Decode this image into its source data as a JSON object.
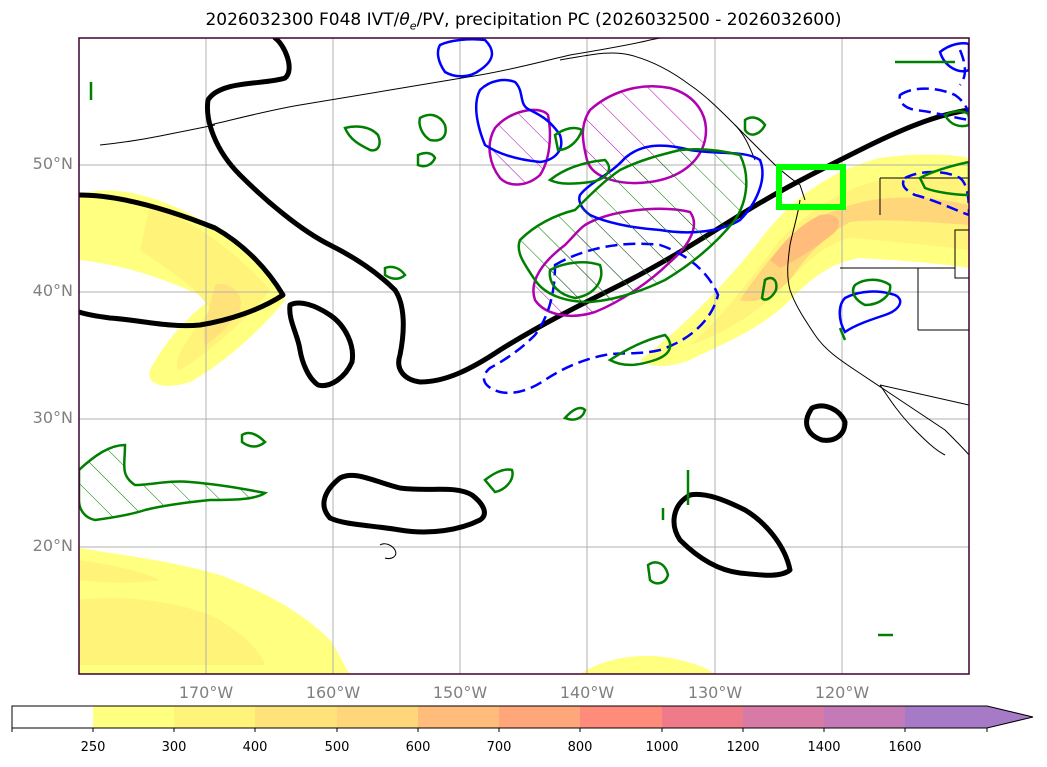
{
  "title": {
    "prefix": "2026032300 F048 IVT/",
    "theta": "θ",
    "theta_sub": "e",
    "suffix": "/PV, precipitation PC (2026032500 - 2026032600)"
  },
  "lat_labels": [
    "50°N",
    "40°N",
    "30°N",
    "20°N"
  ],
  "lon_labels": [
    "170°W",
    "160°W",
    "150°W",
    "140°W",
    "130°W",
    "120°W"
  ],
  "colorbar": {
    "ticks": [
      "250",
      "300",
      "400",
      "500",
      "600",
      "700",
      "800",
      "1000",
      "1200",
      "1400",
      "1600"
    ],
    "colors": [
      "#ffffff",
      "#ffff80",
      "#fff37a",
      "#ffe27a",
      "#ffd67a",
      "#ffbc7a",
      "#ffa77a",
      "#ff8c7a",
      "#ee7a8a",
      "#d77aa6",
      "#c37ab7",
      "#a77ac8"
    ],
    "extend": "max"
  },
  "colors": {
    "ivt_fill": "#fff37a",
    "theta_e_contour": "#000000",
    "pv_contour": "#008000",
    "positive_pc": "#b000b0",
    "negative_pc": "#0000ff",
    "target_box": "#00ff00",
    "coastline": "#000000",
    "frame": "#3d0030"
  },
  "map_extent": {
    "lon_min": -180,
    "lon_max": -110,
    "lat_min": 10,
    "lat_max": 60
  },
  "target_box": {
    "lon_min": -125,
    "lon_max": -120,
    "lat_min": 47,
    "lat_max": 50
  },
  "icons": [
    "colorbar-extend-arrow-icon"
  ]
}
